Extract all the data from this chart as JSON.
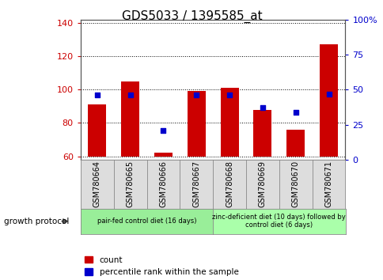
{
  "title": "GDS5033 / 1395585_at",
  "samples": [
    "GSM780664",
    "GSM780665",
    "GSM780666",
    "GSM780667",
    "GSM780668",
    "GSM780669",
    "GSM780670",
    "GSM780671"
  ],
  "counts": [
    91,
    105,
    62,
    99,
    101,
    88,
    76,
    127
  ],
  "percentiles": [
    46,
    46,
    21,
    46,
    46,
    37,
    34,
    47
  ],
  "ylim_left": [
    58,
    142
  ],
  "ylim_right": [
    0,
    100
  ],
  "yticks_left": [
    60,
    80,
    100,
    120,
    140
  ],
  "yticks_right": [
    0,
    25,
    50,
    75,
    100
  ],
  "bar_color": "#cc0000",
  "dot_color": "#0000cc",
  "bar_bottom": 60,
  "groups": [
    {
      "label": "pair-fed control diet (16 days)",
      "start": 0,
      "end": 4,
      "color": "#99ee99"
    },
    {
      "label": "zinc-deficient diet (10 days) followed by\ncontrol diet (6 days)",
      "start": 4,
      "end": 8,
      "color": "#aaffaa"
    }
  ],
  "group_protocol_label": "growth protocol",
  "legend_count_label": "count",
  "legend_pct_label": "percentile rank within the sample",
  "title_fontsize": 11,
  "tick_fontsize": 8,
  "sample_fontsize": 7
}
